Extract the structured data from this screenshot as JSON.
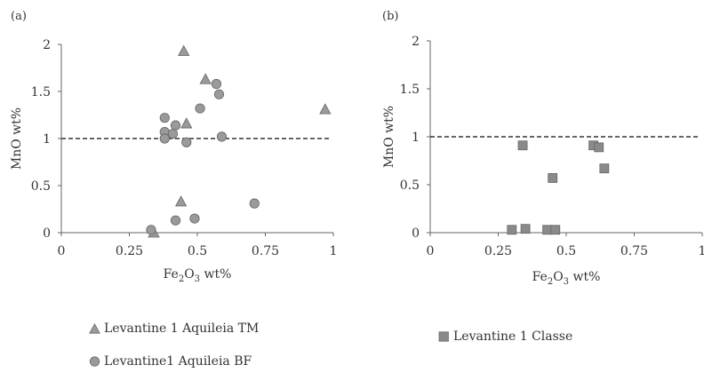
{
  "chart_data": [
    {
      "type": "scatter",
      "panel_label": "(a)",
      "xlabel_main": "Fe",
      "xlabel_sub": "2",
      "xlabel_mid": "O",
      "xlabel_sub2": "3",
      "xlabel_tail": " wt%",
      "ylabel": "MnO wt%",
      "xlim": [
        0,
        1
      ],
      "ylim": [
        0,
        2
      ],
      "xticks": [
        0,
        0.25,
        0.5,
        0.75,
        1
      ],
      "xtick_labels": [
        "0",
        "0.25",
        "0.5",
        "0.75",
        "1"
      ],
      "yticks": [
        0,
        0.5,
        1,
        1.5,
        2
      ],
      "ytick_labels": [
        "0",
        "0.5",
        "1",
        "1.5",
        "2"
      ],
      "reference_line": {
        "y": 1,
        "style": "dashed"
      },
      "series": [
        {
          "name": "Levantine 1 Aquileia TM",
          "marker": "triangle",
          "color": "#9a9a9a",
          "points": [
            [
              0.45,
              1.93
            ],
            [
              0.53,
              1.63
            ],
            [
              0.46,
              1.16
            ],
            [
              0.44,
              0.33
            ],
            [
              0.34,
              0.0
            ],
            [
              0.97,
              1.31
            ]
          ]
        },
        {
          "name": "Levantine1 Aquileia BF",
          "marker": "circle",
          "color": "#9a9a9a",
          "points": [
            [
              0.38,
              1.22
            ],
            [
              0.38,
              1.07
            ],
            [
              0.38,
              1.0
            ],
            [
              0.42,
              1.14
            ],
            [
              0.41,
              1.05
            ],
            [
              0.46,
              0.96
            ],
            [
              0.51,
              1.32
            ],
            [
              0.57,
              1.58
            ],
            [
              0.58,
              1.47
            ],
            [
              0.59,
              1.02
            ],
            [
              0.71,
              0.31
            ],
            [
              0.49,
              0.15
            ],
            [
              0.42,
              0.13
            ],
            [
              0.33,
              0.03
            ]
          ]
        }
      ]
    },
    {
      "type": "scatter",
      "panel_label": "(b)",
      "xlabel_main": "Fe",
      "xlabel_sub": "2",
      "xlabel_mid": "O",
      "xlabel_sub2": "3",
      "xlabel_tail": " wt%",
      "ylabel": "MnO wt%",
      "xlim": [
        0,
        1
      ],
      "ylim": [
        0,
        2
      ],
      "xticks": [
        0,
        0.25,
        0.5,
        0.75,
        1
      ],
      "xtick_labels": [
        "0",
        "0.25",
        "0.5",
        "0.75",
        "1"
      ],
      "yticks": [
        0,
        0.5,
        1,
        1.5,
        2
      ],
      "ytick_labels": [
        "0",
        "0.5",
        "1",
        "1.5",
        "2"
      ],
      "reference_line": {
        "y": 1,
        "style": "dashed"
      },
      "series": [
        {
          "name": "Levantine 1 Classe",
          "marker": "square",
          "color": "#8a8a8a",
          "points": [
            [
              0.34,
              0.91
            ],
            [
              0.6,
              0.91
            ],
            [
              0.62,
              0.89
            ],
            [
              0.64,
              0.67
            ],
            [
              0.45,
              0.57
            ],
            [
              0.3,
              0.03
            ],
            [
              0.35,
              0.04
            ],
            [
              0.43,
              0.03
            ],
            [
              0.46,
              0.03
            ]
          ]
        }
      ]
    }
  ]
}
